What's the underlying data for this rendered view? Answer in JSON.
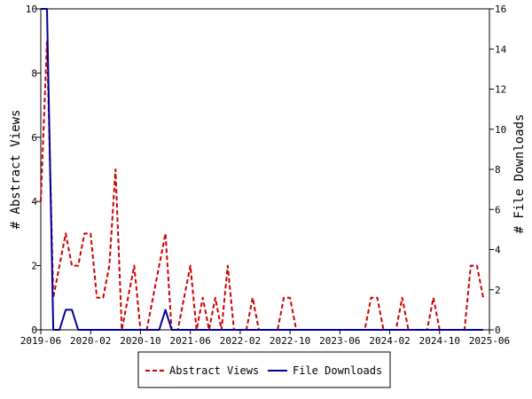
{
  "chart_data": {
    "type": "line",
    "x_ticks": [
      "2019-06",
      "2020-02",
      "2020-10",
      "2021-06",
      "2022-02",
      "2022-10",
      "2023-06",
      "2024-02",
      "2024-10",
      "2025-06"
    ],
    "x_range": [
      "2019-06",
      "2025-06"
    ],
    "ylabel_left": "# Abstract Views",
    "ylabel_right": "# File Downloads",
    "ylim_left": [
      0,
      10
    ],
    "ylim_right": [
      0,
      16
    ],
    "yticks_left": [
      0,
      2,
      4,
      6,
      8,
      10
    ],
    "yticks_right": [
      0,
      2,
      4,
      6,
      8,
      10,
      12,
      14,
      16
    ],
    "grid": false,
    "legend_placement": "bottom-center",
    "series": [
      {
        "name": "Abstract Views",
        "axis": "left",
        "color": "#cc0000",
        "style": "dashed",
        "points": [
          [
            "2019-06",
            4
          ],
          [
            "2019-07",
            9
          ],
          [
            "2019-08",
            1
          ],
          [
            "2019-09",
            2
          ],
          [
            "2019-10",
            3
          ],
          [
            "2019-11",
            2
          ],
          [
            "2019-12",
            2
          ],
          [
            "2020-01",
            3
          ],
          [
            "2020-02",
            3
          ],
          [
            "2020-03",
            1
          ],
          [
            "2020-04",
            1
          ],
          [
            "2020-05",
            2
          ],
          [
            "2020-06",
            5
          ],
          [
            "2020-07",
            0
          ],
          [
            "2020-08",
            1
          ],
          [
            "2020-09",
            2
          ],
          [
            "2020-10",
            0
          ],
          [
            "2020-11",
            0
          ],
          [
            "2020-12",
            1
          ],
          [
            "2021-01",
            2
          ],
          [
            "2021-02",
            3
          ],
          [
            "2021-03",
            0
          ],
          [
            "2021-04",
            0
          ],
          [
            "2021-05",
            1
          ],
          [
            "2021-06",
            2
          ],
          [
            "2021-07",
            0
          ],
          [
            "2021-08",
            1
          ],
          [
            "2021-09",
            0
          ],
          [
            "2021-10",
            1
          ],
          [
            "2021-11",
            0
          ],
          [
            "2021-12",
            2
          ],
          [
            "2022-01",
            0
          ],
          [
            "2022-02",
            0
          ],
          [
            "2022-03",
            0
          ],
          [
            "2022-04",
            1
          ],
          [
            "2022-05",
            0
          ],
          [
            "2022-06",
            0
          ],
          [
            "2022-07",
            0
          ],
          [
            "2022-08",
            0
          ],
          [
            "2022-09",
            1
          ],
          [
            "2022-10",
            1
          ],
          [
            "2022-11",
            0
          ],
          [
            "2023-10",
            0
          ],
          [
            "2023-11",
            1
          ],
          [
            "2023-12",
            1
          ],
          [
            "2024-01",
            0
          ],
          [
            "2024-02",
            0
          ],
          [
            "2024-03",
            0
          ],
          [
            "2024-04",
            1
          ],
          [
            "2024-05",
            0
          ],
          [
            "2024-06",
            0
          ],
          [
            "2024-07",
            0
          ],
          [
            "2024-08",
            0
          ],
          [
            "2024-09",
            1
          ],
          [
            "2024-10",
            0
          ],
          [
            "2024-11",
            0
          ],
          [
            "2024-12",
            0
          ],
          [
            "2025-01",
            0
          ],
          [
            "2025-02",
            0
          ],
          [
            "2025-03",
            2
          ],
          [
            "2025-04",
            2
          ],
          [
            "2025-05",
            1
          ]
        ]
      },
      {
        "name": "File Downloads",
        "axis": "right",
        "color": "#000099",
        "style": "solid",
        "points": [
          [
            "2019-06",
            16
          ],
          [
            "2019-07",
            16
          ],
          [
            "2019-08",
            0
          ],
          [
            "2019-09",
            0
          ],
          [
            "2019-10",
            1
          ],
          [
            "2019-11",
            1
          ],
          [
            "2019-12",
            0
          ],
          [
            "2020-01",
            0
          ],
          [
            "2021-01",
            0
          ],
          [
            "2021-02",
            1
          ],
          [
            "2021-03",
            0
          ],
          [
            "2025-05",
            0
          ]
        ]
      }
    ]
  }
}
